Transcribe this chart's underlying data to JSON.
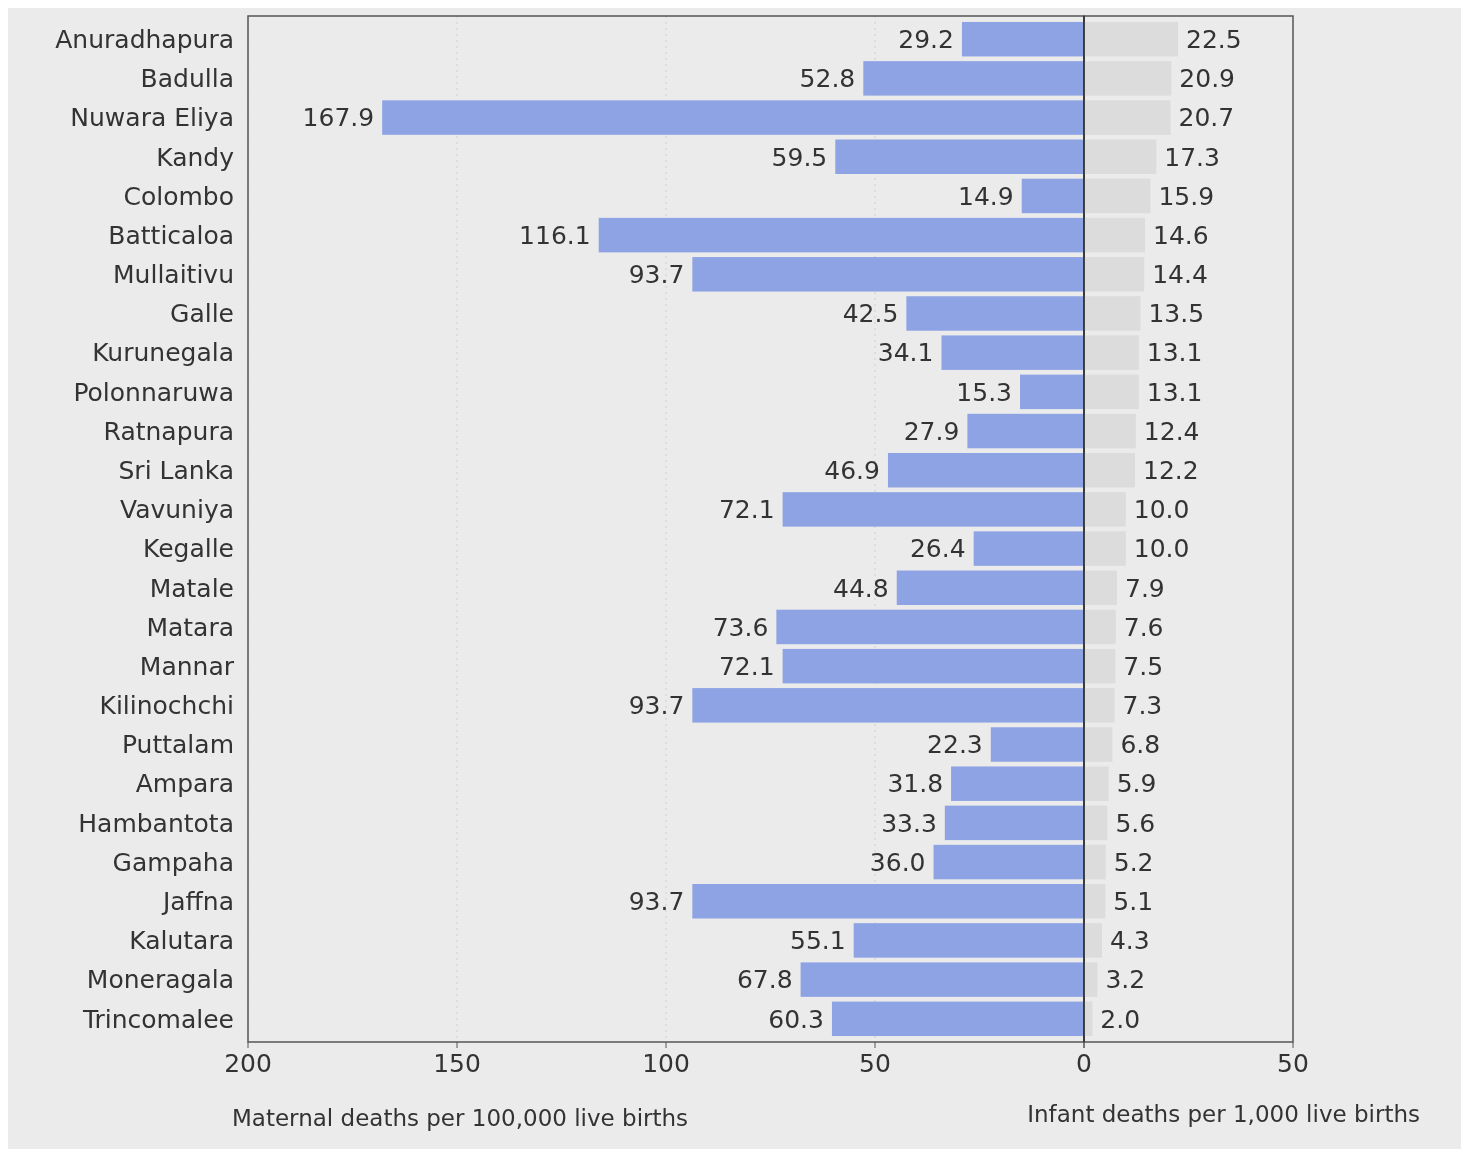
{
  "chart_data": [
    {
      "type": "bar",
      "orientation": "horizontal",
      "xlabel": "Maternal deaths per 100,000 live births",
      "categories": [
        "Anuradhapura",
        "Badulla",
        "Nuwara Eliya",
        "Kandy",
        "Colombo",
        "Batticaloa",
        "Mullaitivu",
        "Galle",
        "Kurunegala",
        "Polonnaruwa",
        "Ratnapura",
        "Sri Lanka",
        "Vavuniya",
        "Kegalle",
        "Matale",
        "Matara",
        "Mannar",
        "Kilinochchi",
        "Puttalam",
        "Ampara",
        "Hambantota",
        "Gampaha",
        "Jaffna",
        "Kalutara",
        "Moneragala",
        "Trincomalee"
      ],
      "values": [
        29.2,
        52.8,
        167.9,
        59.5,
        14.9,
        116.1,
        93.7,
        42.5,
        34.1,
        15.3,
        27.9,
        46.9,
        72.1,
        26.4,
        44.8,
        73.6,
        72.1,
        93.7,
        22.3,
        31.8,
        33.3,
        36.0,
        93.7,
        55.1,
        67.8,
        60.3
      ],
      "value_labels": [
        "29.2",
        "52.8",
        "167.9",
        "59.5",
        "14.9",
        "116.1",
        "93.7",
        "42.5",
        "34.1",
        "15.3",
        "27.9",
        "46.9",
        "72.1",
        "26.4",
        "44.8",
        "73.6",
        "72.1",
        "93.7",
        "22.3",
        "31.8",
        "33.3",
        "36.0",
        "93.7",
        "55.1",
        "67.8",
        "60.3"
      ],
      "color": "#8ea3e4",
      "xlim": [
        200,
        0
      ],
      "xticks": [
        200,
        150,
        100,
        50,
        0
      ],
      "grid": "x"
    },
    {
      "type": "bar",
      "orientation": "horizontal",
      "xlabel": "Infant deaths per 1,000 live births",
      "categories": [
        "Anuradhapura",
        "Badulla",
        "Nuwara Eliya",
        "Kandy",
        "Colombo",
        "Batticaloa",
        "Mullaitivu",
        "Galle",
        "Kurunegala",
        "Polonnaruwa",
        "Ratnapura",
        "Sri Lanka",
        "Vavuniya",
        "Kegalle",
        "Matale",
        "Matara",
        "Mannar",
        "Kilinochchi",
        "Puttalam",
        "Ampara",
        "Hambantota",
        "Gampaha",
        "Jaffna",
        "Kalutara",
        "Moneragala",
        "Trincomalee"
      ],
      "values": [
        22.5,
        20.9,
        20.7,
        17.3,
        15.9,
        14.6,
        14.4,
        13.5,
        13.1,
        13.1,
        12.4,
        12.2,
        10.0,
        10.0,
        7.9,
        7.6,
        7.5,
        7.3,
        6.8,
        5.9,
        5.6,
        5.2,
        5.1,
        4.3,
        3.2,
        2.0
      ],
      "value_labels": [
        "22.5",
        "20.9",
        "20.7",
        "17.3",
        "15.9",
        "14.6",
        "14.4",
        "13.5",
        "13.1",
        "13.1",
        "12.4",
        "12.2",
        "10.0",
        "10.0",
        "7.9",
        "7.6",
        "7.5",
        "7.3",
        "6.8",
        "5.9",
        "5.6",
        "5.2",
        "5.1",
        "4.3",
        "3.2",
        "2.0"
      ],
      "color": "#dcdcdc",
      "xlim": [
        0,
        50
      ],
      "xticks": [
        {
          "value": 0,
          "label": null
        },
        50
      ],
      "tick_labels": "x"
    }
  ]
}
